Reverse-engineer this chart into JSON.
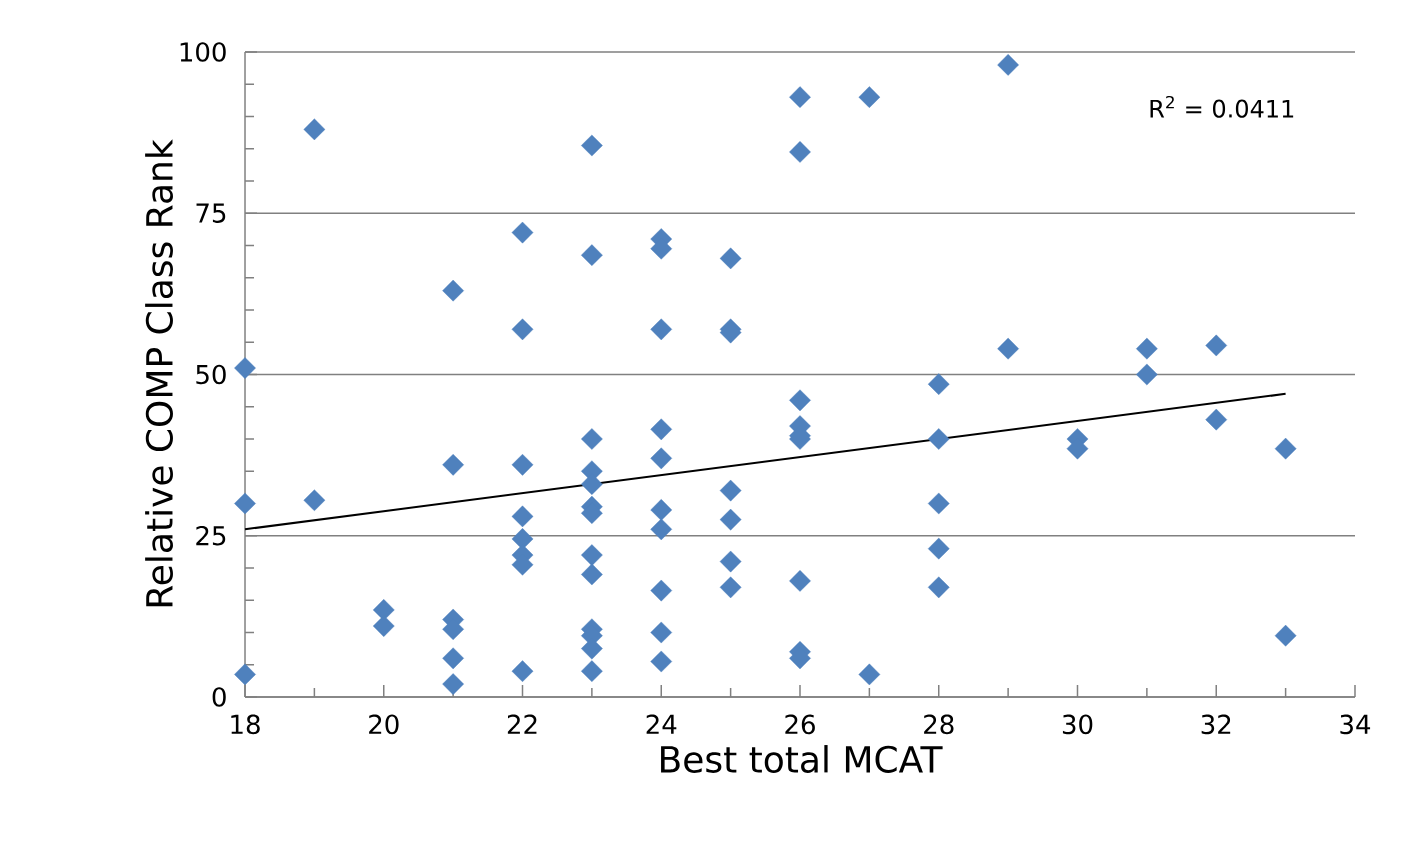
{
  "chart_data": {
    "type": "scatter",
    "xlabel": "Best total MCAT",
    "ylabel": "Relative COMP Class Rank",
    "xlim": [
      18,
      34
    ],
    "xticks": [
      18,
      20,
      22,
      24,
      26,
      28,
      30,
      32,
      34
    ],
    "ylim": [
      0,
      100
    ],
    "yticks": [
      0,
      25,
      50,
      75,
      100
    ],
    "grid": "y",
    "marker": "diamond",
    "annotations": [
      "R$^{2}$ = 0.0411"
    ],
    "series": [
      {
        "color": "#4f81bd",
        "x": [
          18,
          18,
          18,
          19,
          19,
          20,
          20,
          21,
          21,
          21,
          21,
          21,
          21,
          22,
          22,
          22,
          22,
          22,
          22,
          22,
          22,
          23,
          23,
          23,
          23,
          23,
          23,
          23,
          23,
          23,
          23,
          23,
          23,
          23,
          24,
          24,
          24,
          24,
          24,
          24,
          24,
          24,
          24,
          24,
          25,
          25,
          25,
          25,
          25,
          25,
          25,
          26,
          26,
          26,
          26,
          26,
          26,
          26,
          26,
          26,
          27,
          27,
          28,
          28,
          28,
          28,
          28,
          29,
          29,
          30,
          30,
          31,
          31,
          32,
          32,
          33,
          33
        ],
        "values": [
          51,
          30,
          3.5,
          88,
          30.5,
          13.5,
          11,
          63,
          36,
          12,
          10.5,
          6,
          2,
          72,
          57,
          36,
          28,
          24.5,
          22,
          20.5,
          4,
          85.5,
          68.5,
          40,
          35,
          33,
          29.5,
          28.5,
          22,
          19,
          10.5,
          9.5,
          7.5,
          4,
          71,
          69.5,
          57,
          41.5,
          37,
          29,
          26,
          16.5,
          10,
          5.5,
          68,
          57,
          56.5,
          32,
          27.5,
          21,
          17,
          93,
          84.5,
          46,
          42,
          40.5,
          40,
          18,
          7,
          6,
          93,
          3.5,
          48.5,
          40,
          30,
          23,
          17,
          98,
          54,
          40,
          38.5,
          54,
          50,
          54.5,
          43,
          38.5,
          9.5
        ]
      },
      {
        "type": "line",
        "color": "#000000",
        "marker": "none",
        "x": [
          18,
          33
        ],
        "values": [
          26,
          47
        ]
      }
    ]
  }
}
